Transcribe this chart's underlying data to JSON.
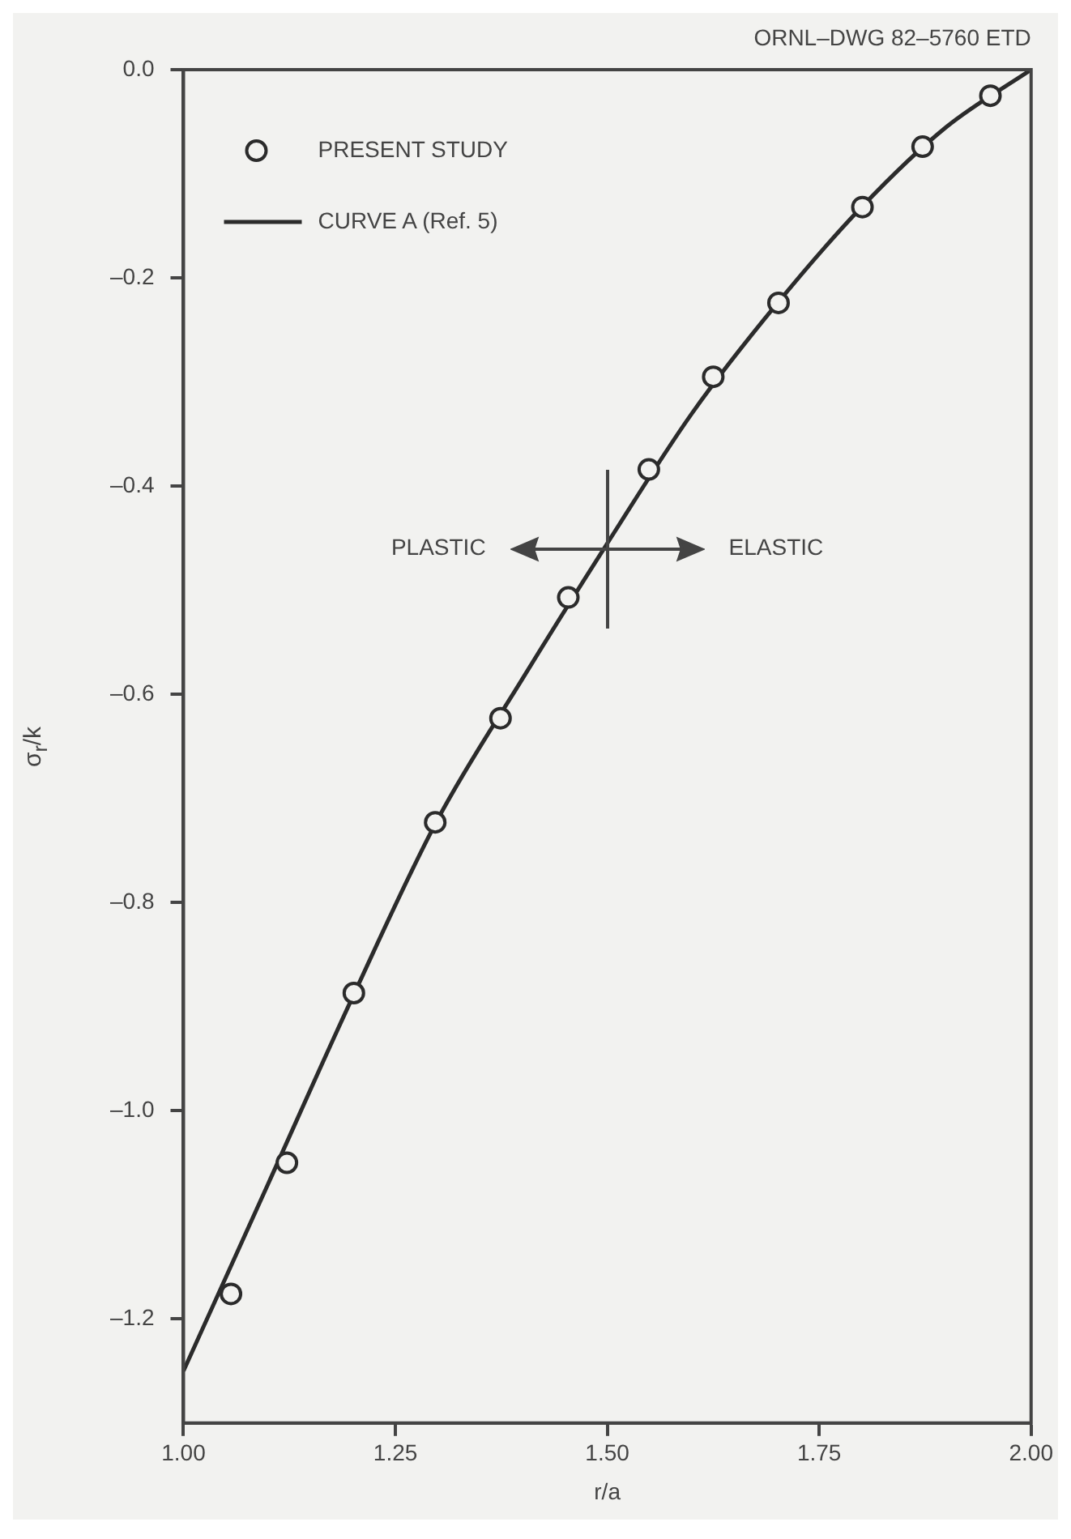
{
  "chart_data": {
    "type": "scatter",
    "xlabel": "r/a",
    "ylabel": "σ$_{r}$/k",
    "xlim": [
      1.0,
      2.0
    ],
    "xticks": [
      {
        "value": 1,
        "label": "1.00"
      },
      {
        "value": 1.25,
        "label": "1.25"
      },
      {
        "value": 1.5,
        "label": "1.50"
      },
      {
        "value": 1.75,
        "label": "1.75"
      },
      {
        "value": 2,
        "label": "2.00"
      }
    ],
    "ylim": [
      -1.3,
      0
    ],
    "yticks": [
      {
        "value": 0,
        "label": "0.0"
      },
      {
        "value": -0.2,
        "label": "–0.2"
      },
      {
        "value": -0.4,
        "label": "–0.4"
      },
      {
        "value": -0.6,
        "label": "–0.6"
      },
      {
        "value": -0.8,
        "label": "–0.8"
      },
      {
        "value": -1.0,
        "label": "–1.0"
      },
      {
        "value": -1.2,
        "label": "–1.2"
      }
    ],
    "grid": false,
    "legend": "top left",
    "marker": "circle",
    "annotations": [
      "ORNL–DWG 82–5760 ETD",
      "PLASTIC",
      "ELASTIC"
    ],
    "series": [
      {
        "name": "PRESENT STUDY",
        "type": "scatter",
        "color": "#2b2b2b",
        "x": [
          1.056,
          1.122,
          1.201,
          1.297,
          1.374,
          1.454,
          1.549,
          1.625,
          1.702,
          1.801,
          1.872,
          1.952
        ],
        "values": [
          -1.176,
          -1.05,
          -0.887,
          -0.723,
          -0.623,
          -0.507,
          -0.384,
          -0.295,
          -0.224,
          -0.132,
          -0.074,
          -0.025
        ]
      },
      {
        "name": "CURVE A (Ref. 5)",
        "type": "line",
        "color": "#2b2b2b",
        "marker": "none",
        "line_style": "solid",
        "x": [
          1.0,
          1.1,
          1.2,
          1.3,
          1.4,
          1.5,
          1.6,
          1.7,
          1.8,
          1.9,
          2.0
        ],
        "values": [
          -1.25,
          -1.07,
          -0.89,
          -0.72,
          -0.585,
          -0.455,
          -0.33,
          -0.225,
          -0.132,
          -0.055,
          0
        ]
      }
    ]
  }
}
